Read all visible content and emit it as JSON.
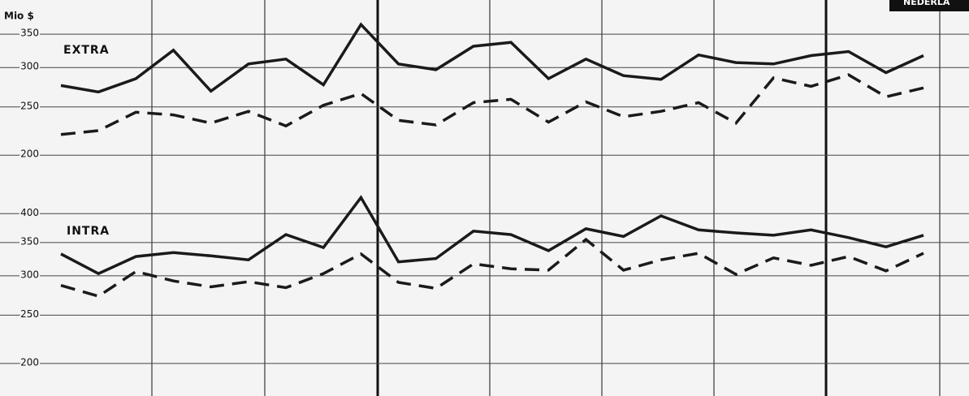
{
  "unit": "Mio $",
  "badge": "NEDERLA",
  "chart_data": [
    {
      "type": "line",
      "title": "EXTRA",
      "log": true,
      "categories": [
        null,
        null,
        null,
        null,
        null,
        null,
        null,
        null,
        null,
        null,
        null,
        null,
        null,
        null,
        null,
        null,
        null,
        null,
        null,
        null,
        null,
        null,
        null,
        null
      ],
      "ylim": [
        185,
        410
      ],
      "yticks": [
        200,
        250,
        300,
        350
      ],
      "series": [
        {
          "color": "#1a1a1a",
          "line_style": "solid",
          "values": [
            276,
            268,
            285,
            325,
            269,
            305,
            312,
            277,
            366,
            305,
            297,
            331,
            337,
            285,
            312,
            289,
            284,
            318,
            307,
            305,
            317,
            323,
            293,
            317
          ]
        },
        {
          "color": "#1a1a1a",
          "line_style": "dashed",
          "values": [
            220,
            224,
            244,
            241,
            232,
            245,
            229,
            252,
            266,
            235,
            230,
            255,
            259,
            233,
            256,
            239,
            245,
            255,
            232,
            286,
            275,
            290,
            262,
            273
          ]
        }
      ]
    },
    {
      "type": "line",
      "title": "INTRA",
      "log": true,
      "categories": [
        null,
        null,
        null,
        null,
        null,
        null,
        null,
        null,
        null,
        null,
        null,
        null,
        null,
        null,
        null,
        null,
        null,
        null,
        null,
        null,
        null,
        null,
        null,
        null
      ],
      "ylim": [
        172,
        455
      ],
      "yticks": [
        200,
        250,
        300,
        350,
        400
      ],
      "series": [
        {
          "color": "#1a1a1a",
          "line_style": "solid",
          "values": [
            332,
            303,
            328,
            334,
            329,
            323,
            363,
            342,
            431,
            320,
            325,
            369,
            363,
            337,
            373,
            360,
            396,
            371,
            366,
            362,
            371,
            358,
            343,
            362
          ]
        },
        {
          "color": "#1a1a1a",
          "line_style": "dashed",
          "values": [
            287,
            273,
            306,
            293,
            285,
            292,
            284,
            303,
            332,
            291,
            283,
            317,
            310,
            308,
            355,
            308,
            323,
            333,
            302,
            326,
            315,
            328,
            307,
            333
          ]
        }
      ]
    }
  ]
}
